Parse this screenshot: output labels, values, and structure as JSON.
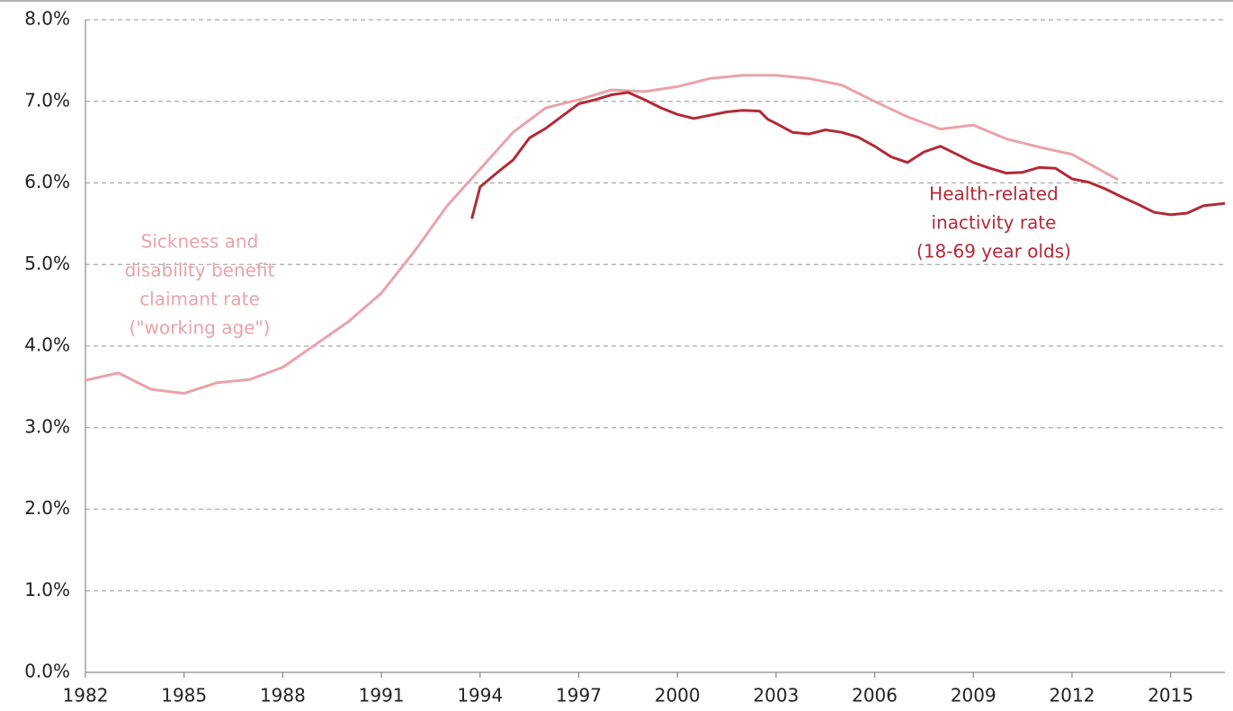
{
  "chart_data": {
    "type": "line",
    "xlim": [
      1982,
      2016.65
    ],
    "xticks": [
      1982,
      1985,
      1988,
      1991,
      1994,
      1997,
      2000,
      2003,
      2006,
      2009,
      2012,
      2015
    ],
    "ylim": [
      0,
      8
    ],
    "yticks": [
      {
        "value": 0,
        "label": "0.0%"
      },
      {
        "value": 1,
        "label": "1.0%"
      },
      {
        "value": 2,
        "label": "2.0%"
      },
      {
        "value": 3,
        "label": "3.0%"
      },
      {
        "value": 4,
        "label": "4.0%"
      },
      {
        "value": 5,
        "label": "5.0%"
      },
      {
        "value": 6,
        "label": "6.0%"
      },
      {
        "value": 7,
        "label": "7.0%"
      },
      {
        "value": 8,
        "label": "8.0%"
      }
    ],
    "grid": true,
    "series": [
      {
        "name": "Sickness and disability benefit claimant rate (\"working age\")",
        "color": "#e9a3aa",
        "label_lines": [
          "Sickness and",
          "disability benefit",
          "claimant rate",
          "(\"working age\")"
        ],
        "x": [
          1982,
          1983,
          1984,
          1985,
          1986,
          1987,
          1988,
          1989,
          1990,
          1991,
          1992,
          1993,
          1994,
          1995,
          1996,
          1997,
          1998,
          1999,
          2000,
          2001,
          2002,
          2003,
          2004,
          2005,
          2006,
          2007,
          2008,
          2009,
          2010,
          2011,
          2012,
          2013.4
        ],
        "values": [
          3.58,
          3.67,
          3.47,
          3.42,
          3.55,
          3.59,
          3.74,
          4.02,
          4.3,
          4.65,
          5.16,
          5.72,
          6.17,
          6.62,
          6.92,
          7.02,
          7.14,
          7.12,
          7.18,
          7.28,
          7.32,
          7.32,
          7.28,
          7.2,
          7.0,
          6.81,
          6.66,
          6.71,
          6.54,
          6.44,
          6.35,
          6.04
        ]
      },
      {
        "name": "Health-related inactivity rate (18-69 year olds)",
        "color": "#b22a37",
        "label_lines": [
          "Health-related",
          "inactivity rate",
          "(18-69 year olds)"
        ],
        "x": [
          1993.75,
          1994,
          1994.5,
          1995,
          1995.5,
          1996,
          1996.5,
          1997,
          1997.5,
          1998,
          1998.5,
          1999,
          1999.5,
          2000,
          2000.5,
          2001,
          2001.5,
          2002,
          2002.5,
          2002.75,
          2003,
          2003.5,
          2004,
          2004.5,
          2005,
          2005.5,
          2006,
          2006.5,
          2007,
          2007.5,
          2008,
          2008.5,
          2009,
          2009.5,
          2010,
          2010.5,
          2011,
          2011.5,
          2012,
          2012.5,
          2013,
          2013.5,
          2014,
          2014.5,
          2015,
          2015.5,
          2016,
          2016.65
        ],
        "values": [
          5.56,
          5.95,
          6.12,
          6.28,
          6.55,
          6.67,
          6.82,
          6.97,
          7.02,
          7.08,
          7.11,
          7.02,
          6.92,
          6.84,
          6.79,
          6.83,
          6.87,
          6.89,
          6.88,
          6.78,
          6.73,
          6.62,
          6.6,
          6.65,
          6.62,
          6.56,
          6.45,
          6.32,
          6.25,
          6.38,
          6.45,
          6.35,
          6.25,
          6.18,
          6.12,
          6.13,
          6.19,
          6.18,
          6.05,
          6.01,
          5.93,
          5.83,
          5.74,
          5.64,
          5.61,
          5.63,
          5.72,
          5.75
        ]
      }
    ]
  }
}
